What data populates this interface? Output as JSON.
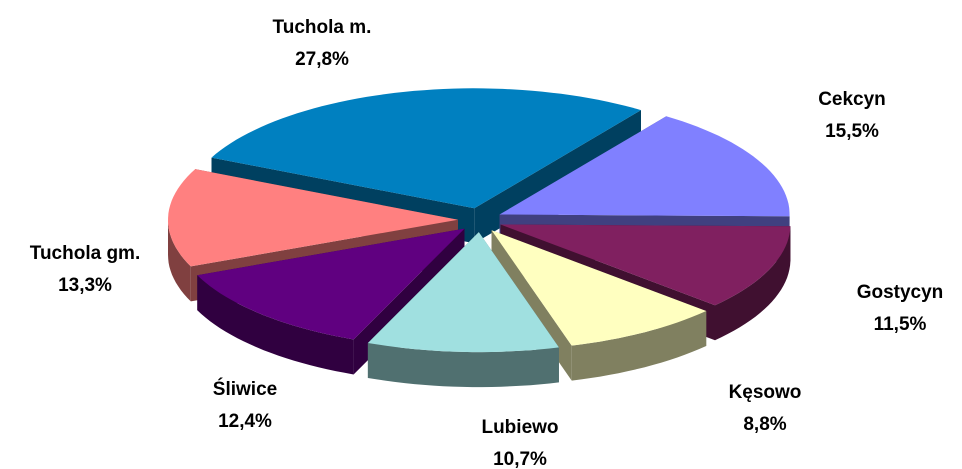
{
  "chart_data": {
    "type": "pie",
    "categories": [
      "Tuchola m.",
      "Cekcyn",
      "Gostycyn",
      "Kęsowo",
      "Lubiewo",
      "Śliwice",
      "Tuchola gm."
    ],
    "values": [
      27.8,
      15.5,
      11.5,
      8.8,
      10.7,
      12.4,
      13.3
    ],
    "value_labels": [
      "27,8%",
      "15,5%",
      "11,5%",
      "8,8%",
      "10,7%",
      "12,4%",
      "13,3%"
    ],
    "colors": [
      "#0080c0",
      "#8080ff",
      "#802060",
      "#ffffc0",
      "#a0e0e0",
      "#600080",
      "#ff8080"
    ]
  }
}
